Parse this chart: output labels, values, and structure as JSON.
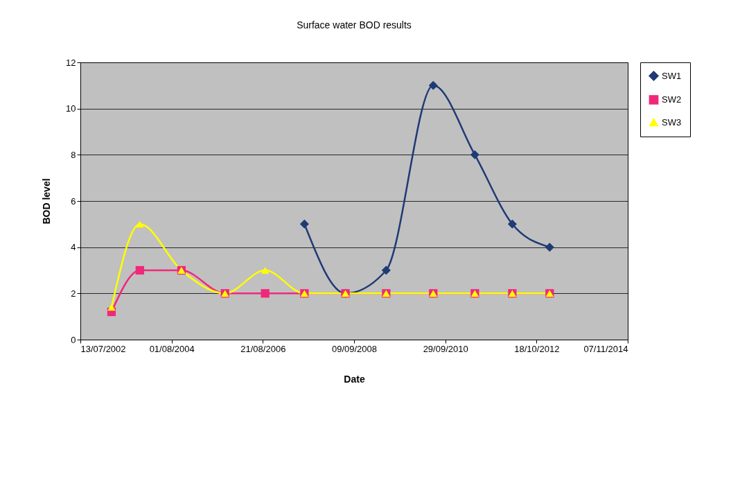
{
  "chart_data": {
    "type": "line",
    "title": "Surface water BOD results",
    "xlabel": "Date",
    "ylabel": "BOD level",
    "series": [
      {
        "name": "SW1",
        "color": "#1f3a75",
        "marker": "diamond",
        "x": [
          "2007-07-29",
          "2008-06-30",
          "2009-05-31",
          "2010-06-22",
          "2011-05-30",
          "2012-04-02",
          "2013-02-03"
        ],
        "values": [
          5,
          2,
          3,
          11,
          8,
          5,
          4
        ]
      },
      {
        "name": "SW2",
        "color": "#f0287a",
        "marker": "square",
        "x": [
          "2003-03-26",
          "2003-11-14",
          "2004-10-21",
          "2005-10-14",
          "2006-09-09",
          "2007-07-29",
          "2008-06-30",
          "2009-05-31",
          "2010-06-22",
          "2011-05-30",
          "2012-04-02",
          "2013-02-03"
        ],
        "values": [
          1.2,
          3,
          3,
          2,
          2,
          2,
          2,
          2,
          2,
          2,
          2,
          2
        ]
      },
      {
        "name": "SW3",
        "color": "#ffff00",
        "marker": "triangle",
        "x": [
          "2003-03-26",
          "2003-11-14",
          "2004-10-21",
          "2005-10-14",
          "2006-09-09",
          "2007-07-29",
          "2008-06-30",
          "2009-05-31",
          "2010-06-22",
          "2011-05-30",
          "2012-04-02",
          "2013-02-03"
        ],
        "values": [
          1.4,
          5,
          3,
          2,
          3,
          2,
          2,
          2,
          2,
          2,
          2,
          2
        ]
      }
    ],
    "xlim": [
      "2002-07-13",
      "2014-11-07"
    ],
    "xticks": [
      {
        "value": "2002-07-13",
        "label": "13/07/2002"
      },
      {
        "value": "2004-08-01",
        "label": "01/08/2004"
      },
      {
        "value": "2006-08-21",
        "label": "21/08/2006"
      },
      {
        "value": "2008-09-09",
        "label": "09/09/2008"
      },
      {
        "value": "2010-09-29",
        "label": "29/09/2010"
      },
      {
        "value": "2012-10-18",
        "label": "18/10/2012"
      },
      {
        "value": "2014-11-07",
        "label": "07/11/2014"
      }
    ],
    "ylim": [
      0,
      12
    ],
    "yticks": [
      0,
      2,
      4,
      6,
      8,
      10,
      12
    ],
    "grid": "y",
    "legend": "right",
    "line_style": "solid"
  }
}
